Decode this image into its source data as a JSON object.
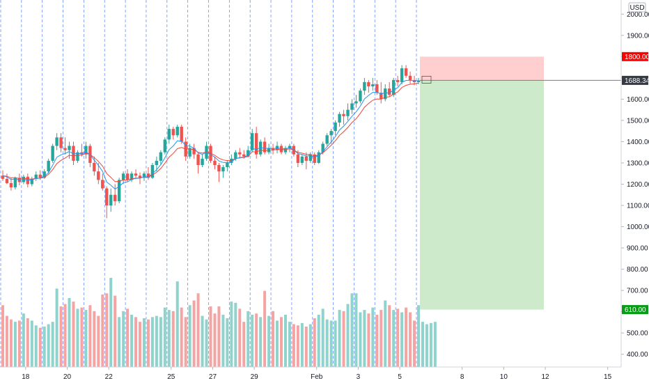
{
  "chart_data": {
    "type": "candlestick",
    "currency": "USD",
    "y_ticks": [
      400,
      500,
      600,
      700,
      800,
      900,
      1000,
      1100,
      1200,
      1300,
      1400,
      1500,
      1600,
      1700,
      1800,
      1900,
      2000
    ],
    "y_tick_labels": [
      "400.00",
      "500.00",
      "",
      "700.00",
      "800.00",
      "900.00",
      "1000.00",
      "1100.00",
      "1200.00",
      "1300.00",
      "1400.00",
      "1500.00",
      "1600.00",
      "",
      "",
      "1900.00",
      "2000.00"
    ],
    "ylim": [
      340,
      2050
    ],
    "x_labels": [
      {
        "bar": 6,
        "label": "18"
      },
      {
        "bar": 16,
        "label": "20"
      },
      {
        "bar": 26,
        "label": "22"
      },
      {
        "bar": 41,
        "label": "25"
      },
      {
        "bar": 51,
        "label": "27"
      },
      {
        "bar": 61,
        "label": "29"
      },
      {
        "bar": 76,
        "label": "Feb"
      },
      {
        "bar": 86,
        "label": "3"
      },
      {
        "bar": 96,
        "label": "5"
      },
      {
        "bar": 111,
        "label": "8"
      },
      {
        "bar": 121,
        "label": "10"
      },
      {
        "bar": 131,
        "label": "12"
      },
      {
        "bar": 146,
        "label": "15"
      }
    ],
    "session_lines": [
      0,
      5,
      10,
      15,
      20,
      25,
      30,
      35,
      40,
      45,
      50,
      55,
      60,
      65,
      70,
      75,
      80,
      85,
      90,
      95,
      100
    ],
    "candles": [
      {
        "o": 1240,
        "h": 1265,
        "l": 1215,
        "c": 1225
      },
      {
        "o": 1225,
        "h": 1250,
        "l": 1200,
        "c": 1205
      },
      {
        "o": 1205,
        "h": 1230,
        "l": 1170,
        "c": 1185
      },
      {
        "o": 1185,
        "h": 1235,
        "l": 1175,
        "c": 1230
      },
      {
        "o": 1230,
        "h": 1250,
        "l": 1195,
        "c": 1210
      },
      {
        "o": 1210,
        "h": 1245,
        "l": 1200,
        "c": 1235
      },
      {
        "o": 1235,
        "h": 1250,
        "l": 1185,
        "c": 1200
      },
      {
        "o": 1200,
        "h": 1235,
        "l": 1190,
        "c": 1225
      },
      {
        "o": 1225,
        "h": 1260,
        "l": 1215,
        "c": 1245
      },
      {
        "o": 1245,
        "h": 1265,
        "l": 1220,
        "c": 1230
      },
      {
        "o": 1230,
        "h": 1270,
        "l": 1225,
        "c": 1260
      },
      {
        "o": 1260,
        "h": 1320,
        "l": 1250,
        "c": 1310
      },
      {
        "o": 1310,
        "h": 1390,
        "l": 1300,
        "c": 1380
      },
      {
        "o": 1380,
        "h": 1440,
        "l": 1360,
        "c": 1420
      },
      {
        "o": 1420,
        "h": 1440,
        "l": 1350,
        "c": 1370
      },
      {
        "o": 1370,
        "h": 1420,
        "l": 1340,
        "c": 1360
      },
      {
        "o": 1360,
        "h": 1400,
        "l": 1320,
        "c": 1380
      },
      {
        "o": 1380,
        "h": 1400,
        "l": 1290,
        "c": 1310
      },
      {
        "o": 1310,
        "h": 1360,
        "l": 1300,
        "c": 1350
      },
      {
        "o": 1350,
        "h": 1390,
        "l": 1330,
        "c": 1340
      },
      {
        "o": 1340,
        "h": 1400,
        "l": 1320,
        "c": 1380
      },
      {
        "o": 1380,
        "h": 1390,
        "l": 1280,
        "c": 1300
      },
      {
        "o": 1300,
        "h": 1330,
        "l": 1240,
        "c": 1260
      },
      {
        "o": 1260,
        "h": 1300,
        "l": 1200,
        "c": 1220
      },
      {
        "o": 1220,
        "h": 1250,
        "l": 1170,
        "c": 1180
      },
      {
        "o": 1180,
        "h": 1190,
        "l": 1040,
        "c": 1100
      },
      {
        "o": 1100,
        "h": 1180,
        "l": 1070,
        "c": 1150
      },
      {
        "o": 1150,
        "h": 1200,
        "l": 1100,
        "c": 1120
      },
      {
        "o": 1120,
        "h": 1230,
        "l": 1110,
        "c": 1220
      },
      {
        "o": 1220,
        "h": 1260,
        "l": 1200,
        "c": 1250
      },
      {
        "o": 1250,
        "h": 1270,
        "l": 1210,
        "c": 1220
      },
      {
        "o": 1220,
        "h": 1260,
        "l": 1210,
        "c": 1250
      },
      {
        "o": 1250,
        "h": 1270,
        "l": 1225,
        "c": 1240
      },
      {
        "o": 1240,
        "h": 1255,
        "l": 1200,
        "c": 1230
      },
      {
        "o": 1230,
        "h": 1260,
        "l": 1215,
        "c": 1250
      },
      {
        "o": 1250,
        "h": 1280,
        "l": 1220,
        "c": 1230
      },
      {
        "o": 1230,
        "h": 1300,
        "l": 1225,
        "c": 1290
      },
      {
        "o": 1290,
        "h": 1330,
        "l": 1260,
        "c": 1310
      },
      {
        "o": 1310,
        "h": 1360,
        "l": 1290,
        "c": 1350
      },
      {
        "o": 1350,
        "h": 1420,
        "l": 1340,
        "c": 1410
      },
      {
        "o": 1410,
        "h": 1480,
        "l": 1390,
        "c": 1460
      },
      {
        "o": 1460,
        "h": 1470,
        "l": 1410,
        "c": 1430
      },
      {
        "o": 1430,
        "h": 1480,
        "l": 1420,
        "c": 1470
      },
      {
        "o": 1470,
        "h": 1480,
        "l": 1390,
        "c": 1400
      },
      {
        "o": 1400,
        "h": 1420,
        "l": 1310,
        "c": 1330
      },
      {
        "o": 1330,
        "h": 1390,
        "l": 1320,
        "c": 1370
      },
      {
        "o": 1370,
        "h": 1390,
        "l": 1320,
        "c": 1340
      },
      {
        "o": 1340,
        "h": 1350,
        "l": 1250,
        "c": 1290
      },
      {
        "o": 1290,
        "h": 1340,
        "l": 1280,
        "c": 1320
      },
      {
        "o": 1320,
        "h": 1400,
        "l": 1310,
        "c": 1380
      },
      {
        "o": 1380,
        "h": 1390,
        "l": 1300,
        "c": 1310
      },
      {
        "o": 1310,
        "h": 1330,
        "l": 1270,
        "c": 1290
      },
      {
        "o": 1290,
        "h": 1300,
        "l": 1210,
        "c": 1260
      },
      {
        "o": 1260,
        "h": 1290,
        "l": 1230,
        "c": 1280
      },
      {
        "o": 1280,
        "h": 1310,
        "l": 1260,
        "c": 1300
      },
      {
        "o": 1300,
        "h": 1340,
        "l": 1290,
        "c": 1320
      },
      {
        "o": 1320,
        "h": 1360,
        "l": 1310,
        "c": 1350
      },
      {
        "o": 1350,
        "h": 1370,
        "l": 1320,
        "c": 1340
      },
      {
        "o": 1340,
        "h": 1360,
        "l": 1320,
        "c": 1330
      },
      {
        "o": 1330,
        "h": 1380,
        "l": 1325,
        "c": 1360
      },
      {
        "o": 1360,
        "h": 1460,
        "l": 1350,
        "c": 1440
      },
      {
        "o": 1440,
        "h": 1470,
        "l": 1320,
        "c": 1340
      },
      {
        "o": 1340,
        "h": 1410,
        "l": 1330,
        "c": 1400
      },
      {
        "o": 1400,
        "h": 1420,
        "l": 1340,
        "c": 1350
      },
      {
        "o": 1350,
        "h": 1390,
        "l": 1340,
        "c": 1370
      },
      {
        "o": 1370,
        "h": 1390,
        "l": 1340,
        "c": 1360
      },
      {
        "o": 1360,
        "h": 1400,
        "l": 1345,
        "c": 1380
      },
      {
        "o": 1380,
        "h": 1390,
        "l": 1340,
        "c": 1350
      },
      {
        "o": 1350,
        "h": 1380,
        "l": 1340,
        "c": 1370
      },
      {
        "o": 1370,
        "h": 1390,
        "l": 1350,
        "c": 1380
      },
      {
        "o": 1380,
        "h": 1390,
        "l": 1330,
        "c": 1340
      },
      {
        "o": 1340,
        "h": 1360,
        "l": 1280,
        "c": 1300
      },
      {
        "o": 1300,
        "h": 1340,
        "l": 1290,
        "c": 1330
      },
      {
        "o": 1330,
        "h": 1350,
        "l": 1270,
        "c": 1310
      },
      {
        "o": 1310,
        "h": 1350,
        "l": 1300,
        "c": 1340
      },
      {
        "o": 1340,
        "h": 1350,
        "l": 1290,
        "c": 1300
      },
      {
        "o": 1300,
        "h": 1360,
        "l": 1295,
        "c": 1350
      },
      {
        "o": 1350,
        "h": 1400,
        "l": 1340,
        "c": 1390
      },
      {
        "o": 1390,
        "h": 1440,
        "l": 1380,
        "c": 1430
      },
      {
        "o": 1430,
        "h": 1460,
        "l": 1390,
        "c": 1450
      },
      {
        "o": 1450,
        "h": 1500,
        "l": 1430,
        "c": 1490
      },
      {
        "o": 1490,
        "h": 1540,
        "l": 1470,
        "c": 1530
      },
      {
        "o": 1530,
        "h": 1550,
        "l": 1480,
        "c": 1520
      },
      {
        "o": 1520,
        "h": 1580,
        "l": 1500,
        "c": 1550
      },
      {
        "o": 1550,
        "h": 1600,
        "l": 1530,
        "c": 1580
      },
      {
        "o": 1580,
        "h": 1620,
        "l": 1560,
        "c": 1590
      },
      {
        "o": 1590,
        "h": 1650,
        "l": 1580,
        "c": 1640
      },
      {
        "o": 1640,
        "h": 1700,
        "l": 1620,
        "c": 1680
      },
      {
        "o": 1680,
        "h": 1690,
        "l": 1630,
        "c": 1660
      },
      {
        "o": 1660,
        "h": 1700,
        "l": 1640,
        "c": 1670
      },
      {
        "o": 1670,
        "h": 1690,
        "l": 1620,
        "c": 1630
      },
      {
        "o": 1630,
        "h": 1680,
        "l": 1580,
        "c": 1600
      },
      {
        "o": 1600,
        "h": 1670,
        "l": 1590,
        "c": 1650
      },
      {
        "o": 1650,
        "h": 1680,
        "l": 1610,
        "c": 1620
      },
      {
        "o": 1620,
        "h": 1700,
        "l": 1610,
        "c": 1690
      },
      {
        "o": 1690,
        "h": 1710,
        "l": 1660,
        "c": 1680
      },
      {
        "o": 1680,
        "h": 1760,
        "l": 1670,
        "c": 1745
      },
      {
        "o": 1745,
        "h": 1760,
        "l": 1700,
        "c": 1710
      },
      {
        "o": 1710,
        "h": 1730,
        "l": 1670,
        "c": 1690
      },
      {
        "o": 1690,
        "h": 1710,
        "l": 1665,
        "c": 1680
      },
      {
        "o": 1680,
        "h": 1700,
        "l": 1670,
        "c": 1688
      }
    ],
    "volumes": [
      520,
      430,
      400,
      380,
      390,
      450,
      410,
      390,
      350,
      330,
      340,
      360,
      380,
      660,
      510,
      530,
      580,
      550,
      490,
      500,
      480,
      520,
      470,
      430,
      610,
      620,
      750,
      600,
      420,
      470,
      490,
      440,
      420,
      380,
      410,
      400,
      420,
      430,
      420,
      500,
      480,
      470,
      720,
      500,
      420,
      520,
      560,
      620,
      430,
      400,
      510,
      450,
      510,
      440,
      410,
      550,
      540,
      490,
      380,
      470,
      440,
      450,
      420,
      640,
      430,
      470,
      390,
      420,
      440,
      380,
      360,
      350,
      370,
      340,
      360,
      410,
      440,
      490,
      400,
      390,
      390,
      480,
      470,
      530,
      620,
      620,
      460,
      480,
      450,
      500,
      440,
      480,
      560,
      520,
      480,
      490,
      460,
      500,
      460,
      390,
      520,
      380,
      360,
      370,
      380
    ],
    "ema_fast": [
      1240,
      1234,
      1222,
      1224,
      1220,
      1224,
      1218,
      1220,
      1227,
      1228,
      1236,
      1255,
      1289,
      1327,
      1338,
      1344,
      1354,
      1342,
      1345,
      1343,
      1353,
      1338,
      1314,
      1289,
      1260,
      1210,
      1195,
      1177,
      1189,
      1207,
      1211,
      1222,
      1227,
      1228,
      1234,
      1233,
      1250,
      1268,
      1292,
      1324,
      1362,
      1380,
      1404,
      1402,
      1383,
      1379,
      1369,
      1347,
      1340,
      1350,
      1339,
      1327,
      1309,
      1302,
      1301,
      1306,
      1319,
      1325,
      1327,
      1337,
      1369,
      1362,
      1373,
      1368,
      1369,
      1366,
      1371,
      1366,
      1367,
      1371,
      1362,
      1343,
      1340,
      1332,
      1335,
      1327,
      1334,
      1353,
      1376,
      1398,
      1424,
      1455,
      1473,
      1495,
      1520,
      1540,
      1567,
      1601,
      1618,
      1632,
      1632,
      1624,
      1631,
      1628,
      1643,
      1654,
      1679,
      1688,
      1689,
      1686,
      1687
    ],
    "ema_slow": [
      1240,
      1237,
      1230,
      1230,
      1227,
      1228,
      1224,
      1224,
      1227,
      1228,
      1232,
      1246,
      1268,
      1297,
      1312,
      1323,
      1336,
      1333,
      1336,
      1337,
      1345,
      1339,
      1325,
      1307,
      1285,
      1250,
      1232,
      1212,
      1213,
      1220,
      1220,
      1225,
      1228,
      1229,
      1233,
      1233,
      1243,
      1256,
      1274,
      1299,
      1327,
      1345,
      1367,
      1373,
      1365,
      1366,
      1362,
      1350,
      1346,
      1352,
      1345,
      1336,
      1322,
      1314,
      1311,
      1313,
      1320,
      1324,
      1325,
      1331,
      1353,
      1351,
      1360,
      1358,
      1360,
      1360,
      1364,
      1362,
      1363,
      1366,
      1361,
      1349,
      1346,
      1340,
      1340,
      1333,
      1336,
      1348,
      1365,
      1383,
      1404,
      1430,
      1447,
      1467,
      1490,
      1508,
      1533,
      1562,
      1580,
      1595,
      1601,
      1600,
      1609,
      1611,
      1624,
      1634,
      1655,
      1665,
      1670,
      1672,
      1676
    ]
  },
  "position": {
    "stop": 1800,
    "target": 610,
    "entry": 1688.34
  },
  "labels": {
    "currency": "USD",
    "stop_price": "1800.00",
    "entry_price": "1688.34",
    "target_price": "610.00"
  },
  "colors": {
    "up": "#26a69a",
    "down": "#ef5350",
    "vol_up": "#8fd3cc",
    "vol_down": "#f4a5a3",
    "ema_fast": "#2196f3",
    "ema_slow": "#f44336",
    "stop_zone": "#ffcfcf",
    "target_zone": "#cdebca",
    "session_line": "#2962ff",
    "entry_line": "#787b86",
    "stop_tag": "#ff0000",
    "entry_tag": "#363a45",
    "target_tag": "#0a9b17"
  }
}
